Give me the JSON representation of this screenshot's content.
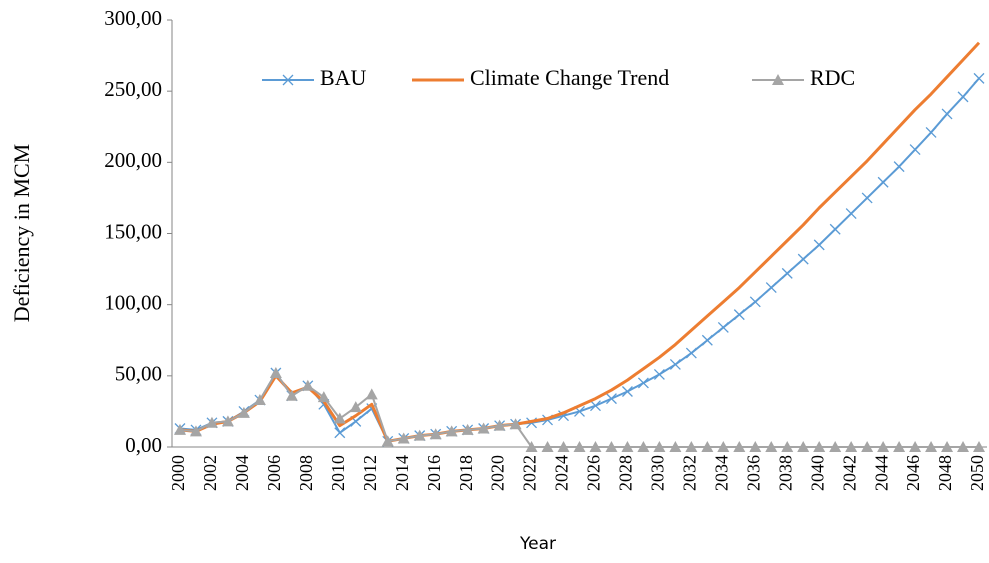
{
  "chart_data": {
    "type": "line",
    "y_label": "Deficiency in MCM",
    "x_label": "Year",
    "categories": [
      "2000",
      null,
      "2002",
      null,
      "2004",
      null,
      "2006",
      null,
      "2008",
      null,
      "2010",
      null,
      "2012",
      null,
      "2014",
      null,
      "2016",
      null,
      "2018",
      null,
      "2020",
      null,
      "2022",
      null,
      "2024",
      null,
      "2026",
      null,
      "2028",
      null,
      "2030",
      null,
      "2032",
      null,
      "2034",
      null,
      "2036",
      null,
      "2038",
      null,
      "2040",
      null,
      "2042",
      null,
      "2044",
      null,
      "2046",
      null,
      "2048",
      null,
      "2050"
    ],
    "series": [
      {
        "name": "BAU",
        "color": "#5b9bd5",
        "marker": "x",
        "values": [
          13,
          12,
          17,
          18,
          25,
          33,
          52,
          36,
          43,
          30,
          10,
          18,
          27,
          4,
          6,
          8,
          9,
          11,
          12,
          13,
          15,
          16,
          17,
          19,
          22,
          25,
          29,
          34,
          39,
          45,
          51,
          58,
          66,
          75,
          84,
          93,
          102,
          112,
          122,
          132,
          142,
          153,
          164,
          175,
          186,
          197,
          209,
          221,
          234,
          246,
          259
        ]
      },
      {
        "name": "Climate Change Trend",
        "color": "#ed7d31",
        "marker": "none",
        "values": [
          12,
          11,
          16,
          18,
          24,
          32,
          50,
          38,
          42,
          32,
          15,
          22,
          30,
          4,
          6,
          8,
          9,
          11,
          12,
          13,
          15,
          16,
          18,
          20,
          24,
          29,
          34,
          40,
          47,
          55,
          63,
          72,
          82,
          92,
          102,
          112,
          123,
          134,
          145,
          156,
          168,
          179,
          190,
          201,
          213,
          225,
          237,
          248,
          260,
          272,
          284
        ]
      },
      {
        "name": "RDC",
        "color": "#a5a5a5",
        "marker": "triangle",
        "values": [
          12,
          11,
          17,
          18,
          24,
          33,
          52,
          36,
          43,
          35,
          20,
          28,
          37,
          4,
          6,
          8,
          9,
          11,
          12,
          13,
          15,
          16,
          0,
          0,
          0,
          0,
          0,
          0,
          0,
          0,
          0,
          0,
          0,
          0,
          0,
          0,
          0,
          0,
          0,
          0,
          0,
          0,
          0,
          0,
          0,
          0,
          0,
          0,
          0,
          0,
          0
        ]
      }
    ],
    "ylim": [
      0,
      300
    ],
    "yticks": [
      {
        "value": 0,
        "label": "0,00"
      },
      {
        "value": 50,
        "label": "50,00"
      },
      {
        "value": 100,
        "label": "100,00"
      },
      {
        "value": 150,
        "label": "150,00"
      },
      {
        "value": 200,
        "label": "200,00"
      },
      {
        "value": 250,
        "label": "250,00"
      },
      {
        "value": 300,
        "label": "300,00"
      }
    ],
    "legend": "top"
  }
}
